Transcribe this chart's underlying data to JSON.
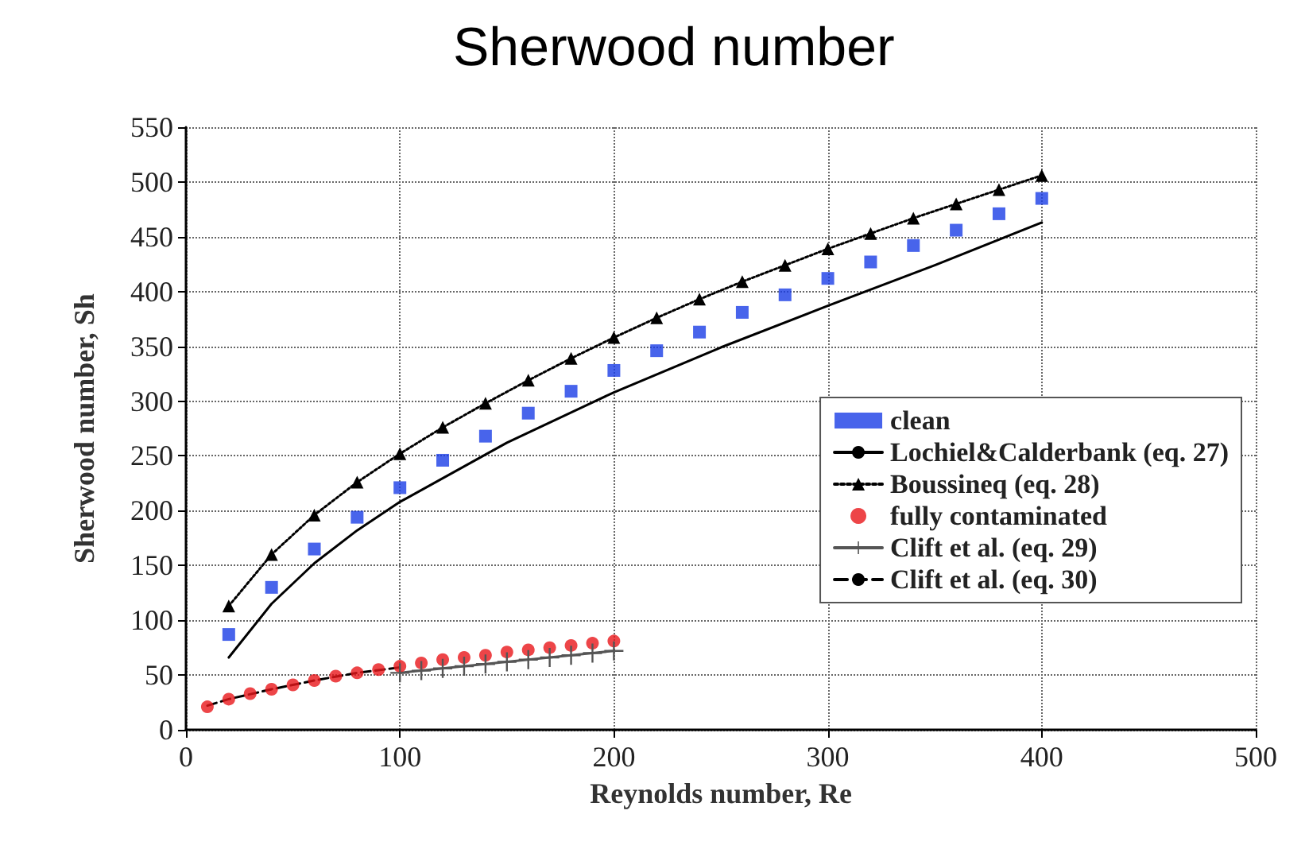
{
  "chart_data": {
    "type": "line",
    "title": "Sherwood number",
    "xlabel": "Reynolds number, Re",
    "ylabel": "Sherwood number, Sh",
    "xlim": [
      0,
      500
    ],
    "xticks": [
      0,
      100,
      200,
      300,
      400,
      500
    ],
    "ylim": [
      0,
      550
    ],
    "yticks": [
      0,
      50,
      100,
      150,
      200,
      250,
      300,
      350,
      400,
      450,
      500,
      550
    ],
    "grid": true,
    "legend": "right",
    "series": [
      {
        "name": "clean",
        "type": "scatter",
        "marker": "square",
        "color": "#1a3de6",
        "x": [
          20,
          40,
          60,
          80,
          100,
          120,
          140,
          160,
          180,
          200,
          220,
          240,
          260,
          280,
          300,
          320,
          340,
          360,
          380,
          400
        ],
        "values": [
          87,
          130,
          165,
          194,
          221,
          246,
          268,
          289,
          309,
          328,
          346,
          363,
          381,
          397,
          412,
          427,
          442,
          456,
          471,
          485
        ]
      },
      {
        "name": "Lochiel&Calderbank (eq. 27)",
        "marker": "none",
        "line_style": "solid",
        "color": "#000000",
        "x": [
          20,
          40,
          60,
          80,
          100,
          150,
          200,
          250,
          300,
          350,
          400
        ],
        "values": [
          66,
          115,
          152,
          182,
          208,
          262,
          308,
          349,
          387,
          424,
          463
        ]
      },
      {
        "name": "Boussineq (eq. 28)",
        "marker": "triangle",
        "line_style": "dotted",
        "color": "#000000",
        "x": [
          20,
          40,
          60,
          80,
          100,
          120,
          140,
          160,
          180,
          200,
          220,
          240,
          260,
          280,
          300,
          320,
          340,
          360,
          380,
          400
        ],
        "values": [
          113,
          160,
          196,
          226,
          252,
          276,
          298,
          319,
          339,
          358,
          376,
          393,
          409,
          424,
          439,
          453,
          467,
          480,
          493,
          506
        ]
      },
      {
        "name": "fully contaminated",
        "type": "scatter",
        "marker": "circle",
        "color": "#e8161a",
        "x": [
          10,
          20,
          30,
          40,
          50,
          60,
          70,
          80,
          90,
          100,
          110,
          120,
          130,
          140,
          150,
          160,
          170,
          180,
          190,
          200
        ],
        "values": [
          21,
          28,
          33,
          37,
          41,
          45,
          49,
          52,
          55,
          58,
          61,
          64,
          66,
          68,
          71,
          73,
          75,
          77,
          79,
          81
        ]
      },
      {
        "name": "Clift et al. (eq. 29)",
        "marker": "cross",
        "line_style": "solid",
        "color": "#555555",
        "x": [
          100,
          110,
          120,
          130,
          140,
          150,
          160,
          170,
          180,
          190,
          200
        ],
        "values": [
          52,
          54,
          56,
          58,
          60,
          62,
          64,
          66,
          68,
          70,
          72
        ]
      },
      {
        "name": "Clift et al. (eq. 30)",
        "marker": "none",
        "line_style": "dashed",
        "color": "#000000",
        "x": [
          10,
          20,
          40,
          60,
          80,
          100
        ],
        "values": [
          22,
          28,
          37,
          45,
          52,
          57
        ]
      }
    ]
  }
}
